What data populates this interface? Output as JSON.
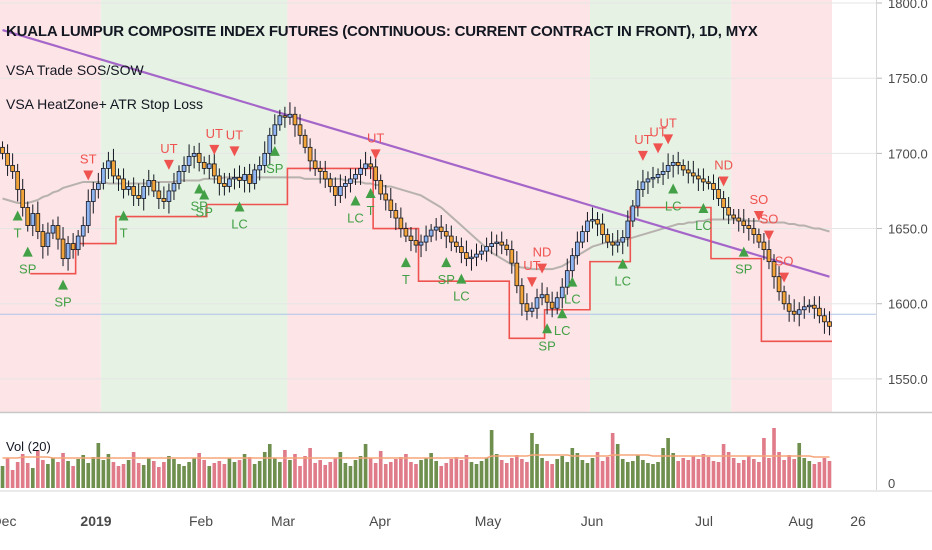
{
  "header": {
    "title": "KUALA LUMPUR COMPOSITE INDEX FUTURES (CONTINUOUS: CURRENT CONTRACT IN FRONT), 1D, MYX",
    "indicator_1": "VSA Trade SOS/SOW",
    "indicator_2": "VSA HeatZone+ ATR Stop Loss",
    "volume_label": "Vol (20)"
  },
  "chart_data": {
    "type": "candlestick",
    "title": "KUALA LUMPUR COMPOSITE INDEX FUTURES (CONTINUOUS: CURRENT CONTRACT IN FRONT), 1D, MYX",
    "interval": "1D",
    "exchange": "MYX",
    "y_axis": {
      "ticks": [
        1550,
        1600,
        1650,
        1700,
        1750,
        1800
      ],
      "range": [
        1528,
        1802
      ],
      "position": "right",
      "grid": true
    },
    "x_axis": {
      "tick_labels": [
        "Dec",
        "2019",
        "Feb",
        "Mar",
        "Apr",
        "May",
        "Jun",
        "Jul",
        "Aug",
        "26"
      ]
    },
    "heat_zones": [
      {
        "from_index": 0,
        "to_index": 19,
        "zone": "red"
      },
      {
        "from_index": 20,
        "to_index": 56,
        "zone": "green"
      },
      {
        "from_index": 57,
        "to_index": 116,
        "zone": "red"
      },
      {
        "from_index": 117,
        "to_index": 144,
        "zone": "green"
      },
      {
        "from_index": 145,
        "to_index": 164,
        "zone": "red"
      }
    ],
    "close": [
      1700,
      1692,
      1688,
      1676,
      1664,
      1652,
      1660,
      1648,
      1638,
      1647,
      1652,
      1643,
      1630,
      1640,
      1636,
      1645,
      1652,
      1668,
      1676,
      1680,
      1690,
      1695,
      1685,
      1683,
      1676,
      1678,
      1672,
      1670,
      1678,
      1682,
      1675,
      1670,
      1668,
      1675,
      1680,
      1688,
      1692,
      1698,
      1700,
      1694,
      1690,
      1693,
      1685,
      1680,
      1678,
      1683,
      1684,
      1682,
      1686,
      1680,
      1689,
      1692,
      1700,
      1712,
      1719,
      1725,
      1724,
      1726,
      1719,
      1712,
      1704,
      1695,
      1690,
      1688,
      1683,
      1678,
      1672,
      1678,
      1680,
      1683,
      1686,
      1690,
      1693,
      1691,
      1682,
      1673,
      1669,
      1662,
      1657,
      1650,
      1645,
      1642,
      1639,
      1641,
      1645,
      1649,
      1651,
      1648,
      1645,
      1641,
      1638,
      1634,
      1630,
      1631,
      1633,
      1635,
      1638,
      1640,
      1641,
      1639,
      1636,
      1627,
      1612,
      1600,
      1595,
      1597,
      1604,
      1606,
      1601,
      1597,
      1604,
      1611,
      1622,
      1632,
      1641,
      1648,
      1655,
      1656,
      1653,
      1646,
      1641,
      1639,
      1641,
      1644,
      1655,
      1665,
      1676,
      1681,
      1683,
      1684,
      1686,
      1688,
      1692,
      1694,
      1692,
      1689,
      1687,
      1685,
      1683,
      1681,
      1680,
      1676,
      1670,
      1664,
      1659,
      1657,
      1655,
      1652,
      1650,
      1646,
      1641,
      1636,
      1628,
      1618,
      1608,
      1600,
      1595,
      1593,
      1596,
      1598,
      1599,
      1597,
      1592,
      1588,
      1585
    ],
    "ma_gray": [
      1670,
      1669,
      1668,
      1667,
      1667,
      1667,
      1668,
      1669,
      1671,
      1672,
      1674,
      1675,
      1677,
      1678,
      1679,
      1680,
      1681,
      1681,
      1681,
      1681,
      1681,
      1680,
      1680,
      1680,
      1680,
      1680,
      1680,
      1680,
      1680,
      1680,
      1681,
      1681,
      1681,
      1681,
      1681,
      1682,
      1682,
      1682,
      1682,
      1682,
      1683,
      1683,
      1683,
      1683,
      1684,
      1684,
      1684,
      1684,
      1684,
      1684,
      1684,
      1684,
      1684,
      1684,
      1684,
      1684,
      1684,
      1684,
      1684,
      1684,
      1683,
      1683,
      1683,
      1683,
      1683,
      1683,
      1683,
      1683,
      1682,
      1682,
      1681,
      1681,
      1680,
      1680,
      1679,
      1679,
      1678,
      1678,
      1677,
      1676,
      1675,
      1674,
      1673,
      1672,
      1670,
      1668,
      1666,
      1664,
      1661,
      1658,
      1655,
      1652,
      1649,
      1646,
      1643,
      1640,
      1637,
      1634,
      1632,
      1630,
      1628,
      1626,
      1625,
      1624,
      1624,
      1623,
      1623,
      1623,
      1623,
      1623,
      1624,
      1625,
      1627,
      1629,
      1632,
      1634,
      1636,
      1638,
      1639,
      1640,
      1641,
      1641,
      1642,
      1643,
      1643,
      1644,
      1645,
      1646,
      1647,
      1648,
      1649,
      1650,
      1651,
      1652,
      1653,
      1653,
      1654,
      1654,
      1655,
      1655,
      1656,
      1656,
      1656,
      1656,
      1656,
      1656,
      1656,
      1656,
      1655,
      1655,
      1655,
      1654,
      1654,
      1654,
      1654,
      1654,
      1653,
      1653,
      1652,
      1652,
      1651,
      1650,
      1650,
      1649,
      1648
    ],
    "ma_purple": [
      1782,
      1781,
      1780,
      1779,
      1778,
      1777,
      1776,
      1775,
      1774,
      1773,
      1772,
      1771,
      1770,
      1769,
      1768,
      1767,
      1766,
      1765,
      1764,
      1763,
      1762,
      1761,
      1760,
      1759,
      1758,
      1757,
      1756,
      1755,
      1754,
      1753,
      1752,
      1751,
      1750,
      1749,
      1748,
      1747,
      1746,
      1745,
      1744,
      1743,
      1742,
      1741,
      1740,
      1739,
      1738,
      1737,
      1736,
      1735,
      1734,
      1733,
      1732,
      1731,
      1730,
      1729,
      1728,
      1727,
      1726,
      1725,
      1724,
      1723,
      1722,
      1721,
      1720,
      1719,
      1718,
      1717,
      1716,
      1715,
      1714,
      1713,
      1712,
      1711,
      1710,
      1709,
      1708,
      1707,
      1706,
      1705,
      1704,
      1703,
      1702,
      1701,
      1700,
      1699,
      1698,
      1697,
      1696,
      1695,
      1694,
      1693,
      1692,
      1691,
      1690,
      1689,
      1688,
      1687,
      1686,
      1685,
      1684,
      1683,
      1682,
      1681,
      1680,
      1679,
      1678,
      1677,
      1676,
      1675,
      1674,
      1673,
      1672,
      1671,
      1670,
      1669,
      1668,
      1667,
      1666,
      1665,
      1664,
      1663,
      1662,
      1661,
      1660,
      1659,
      1658,
      1657,
      1656,
      1655,
      1654,
      1653,
      1652,
      1651,
      1650,
      1649,
      1648,
      1647,
      1646,
      1645,
      1644,
      1643,
      1642,
      1641,
      1640,
      1639,
      1638,
      1637,
      1636,
      1635,
      1634,
      1633,
      1632,
      1631,
      1630,
      1629,
      1628,
      1627,
      1626,
      1625,
      1624,
      1623,
      1622,
      1621,
      1620,
      1619,
      1618
    ],
    "stop_loss_segments": [
      {
        "from": 6,
        "to": 14,
        "value": 1620
      },
      {
        "from": 15,
        "to": 22,
        "value": 1640
      },
      {
        "from": 23,
        "to": 40,
        "value": 1658
      },
      {
        "from": 41,
        "to": 56,
        "value": 1666
      },
      {
        "from": 57,
        "to": 73,
        "value": 1690
      },
      {
        "from": 74,
        "to": 82,
        "value": 1650
      },
      {
        "from": 83,
        "to": 100,
        "value": 1615
      },
      {
        "from": 101,
        "to": 107,
        "value": 1577
      },
      {
        "from": 108,
        "to": 116,
        "value": 1596
      },
      {
        "from": 117,
        "to": 124,
        "value": 1628
      },
      {
        "from": 125,
        "to": 140,
        "value": 1664
      },
      {
        "from": 141,
        "to": 150,
        "value": 1630
      },
      {
        "from": 151,
        "to": 164,
        "value": 1575
      }
    ],
    "signals": [
      {
        "i": 3,
        "label": "T",
        "side": "below"
      },
      {
        "i": 5,
        "label": "SP",
        "side": "below"
      },
      {
        "i": 12,
        "label": "SP",
        "side": "below"
      },
      {
        "i": 17,
        "label": "ST",
        "side": "above"
      },
      {
        "i": 24,
        "label": "T",
        "side": "below"
      },
      {
        "i": 33,
        "label": "UT",
        "side": "above"
      },
      {
        "i": 39,
        "label": "SP",
        "side": "below"
      },
      {
        "i": 40,
        "label": "SP",
        "side": "below"
      },
      {
        "i": 42,
        "label": "UT",
        "side": "above"
      },
      {
        "i": 46,
        "label": "UT",
        "side": "above"
      },
      {
        "i": 47,
        "label": "LC",
        "side": "below"
      },
      {
        "i": 54,
        "label": "SP",
        "side": "below"
      },
      {
        "i": 74,
        "label": "UT",
        "side": "above"
      },
      {
        "i": 70,
        "label": "LC",
        "side": "below"
      },
      {
        "i": 73,
        "label": "T",
        "side": "below"
      },
      {
        "i": 80,
        "label": "T",
        "side": "below"
      },
      {
        "i": 88,
        "label": "SP",
        "side": "below"
      },
      {
        "i": 91,
        "label": "LC",
        "side": "below"
      },
      {
        "i": 105,
        "label": "UT",
        "side": "above"
      },
      {
        "i": 107,
        "label": "ND",
        "side": "above"
      },
      {
        "i": 108,
        "label": "SP",
        "side": "below"
      },
      {
        "i": 111,
        "label": "LC",
        "side": "below"
      },
      {
        "i": 113,
        "label": "LC",
        "side": "below"
      },
      {
        "i": 123,
        "label": "LC",
        "side": "below"
      },
      {
        "i": 127,
        "label": "UT",
        "side": "above"
      },
      {
        "i": 130,
        "label": "UT",
        "side": "above"
      },
      {
        "i": 132,
        "label": "UT",
        "side": "above"
      },
      {
        "i": 133,
        "label": "LC",
        "side": "below"
      },
      {
        "i": 139,
        "label": "LC",
        "side": "below"
      },
      {
        "i": 143,
        "label": "ND",
        "side": "above"
      },
      {
        "i": 147,
        "label": "SP",
        "side": "below"
      },
      {
        "i": 150,
        "label": "SO",
        "side": "above"
      },
      {
        "i": 152,
        "label": "SO",
        "side": "above"
      },
      {
        "i": 155,
        "label": "SO",
        "side": "above"
      }
    ],
    "volume": {
      "label": "Vol (20)",
      "y_tick": 0,
      "bars": [
        22,
        30,
        18,
        26,
        34,
        25,
        20,
        38,
        28,
        24,
        30,
        26,
        35,
        27,
        22,
        29,
        33,
        25,
        31,
        45,
        28,
        34,
        26,
        22,
        24,
        28,
        36,
        25,
        23,
        30,
        27,
        21,
        26,
        32,
        29,
        24,
        22,
        26,
        30,
        35,
        28,
        22,
        25,
        27,
        24,
        30,
        26,
        28,
        34,
        31,
        24,
        27,
        36,
        44,
        30,
        26,
        38,
        28,
        34,
        22,
        32,
        40,
        25,
        28,
        23,
        26,
        30,
        36,
        25,
        22,
        28,
        32,
        44,
        30,
        25,
        37,
        24,
        26,
        29,
        31,
        34,
        26,
        24,
        28,
        30,
        35,
        27,
        22,
        25,
        29,
        31,
        28,
        33,
        26,
        24,
        27,
        30,
        58,
        34,
        28,
        25,
        30,
        33,
        29,
        26,
        55,
        44,
        30,
        27,
        24,
        29,
        32,
        26,
        40,
        35,
        28,
        25,
        30,
        36,
        27,
        31,
        55,
        44,
        29,
        26,
        27,
        33,
        28,
        25,
        24,
        26,
        40,
        50,
        35,
        27,
        30,
        28,
        32,
        29,
        34,
        31,
        27,
        26,
        44,
        36,
        30,
        25,
        28,
        32,
        29,
        26,
        50,
        30,
        60,
        36,
        28,
        33,
        29,
        45,
        30,
        27,
        24,
        26,
        30,
        27
      ],
      "ma": [
        30,
        30,
        30,
        30,
        31,
        31,
        31,
        31,
        31,
        31,
        30,
        30,
        30,
        30,
        30,
        30,
        30,
        30,
        30,
        30,
        30,
        30,
        30,
        30,
        30,
        30,
        30,
        30,
        30,
        30,
        30,
        30,
        30,
        30,
        30,
        30,
        30,
        30,
        30,
        30,
        30,
        30,
        30,
        30,
        30,
        30,
        30,
        30,
        30,
        30,
        30,
        30,
        30,
        30,
        30,
        30,
        30,
        30,
        30,
        30,
        30,
        30,
        30,
        30,
        30,
        30,
        30,
        30,
        30,
        30,
        30,
        30,
        30,
        30,
        30,
        30,
        30,
        30,
        30,
        30,
        30,
        30,
        30,
        30,
        30,
        30,
        30,
        30,
        30,
        30,
        30,
        30,
        30,
        30,
        30,
        30,
        30,
        32,
        32,
        32,
        32,
        32,
        32,
        32,
        32,
        33,
        33,
        33,
        33,
        33,
        33,
        33,
        33,
        32,
        32,
        32,
        32,
        32,
        32,
        32,
        32,
        33,
        33,
        33,
        33,
        33,
        33,
        33,
        33,
        32,
        32,
        32,
        32,
        32,
        32,
        32,
        32,
        32,
        32,
        32,
        32,
        32,
        32,
        32,
        32,
        32,
        32,
        32,
        32,
        32,
        32,
        32,
        32,
        32,
        32,
        32,
        32,
        32,
        32,
        32,
        32,
        31,
        31,
        31,
        31
      ]
    }
  },
  "colors": {
    "up_candle": "#8fb4f2",
    "down_candle": "#f2a43a",
    "candle_outline": "#131722",
    "zone_red": "#fde4e6",
    "zone_green": "#e6f2e4",
    "ma_gray": "#b7b2ae",
    "ma_purple": "#a566c9",
    "stop_loss": "#ef5350",
    "signal_up": "#43a047",
    "signal_down": "#ef5350",
    "vol_up": "#6f8f4e",
    "vol_down": "#e07c8a",
    "vol_ma": "#f5a57a",
    "price_line": "#b0c4e8"
  }
}
